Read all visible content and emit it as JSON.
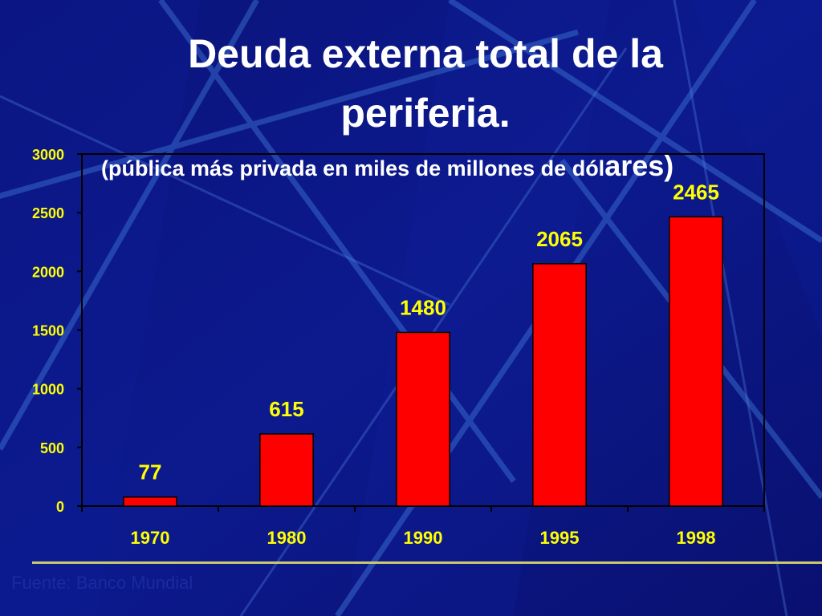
{
  "slide": {
    "title_line1": "Deuda externa total de la",
    "title_line2": "periferia.",
    "subtitle_part1": "(pública más privada en miles de millones de dól",
    "subtitle_part2": "ares)",
    "source_text": "Fuente: Banco Mundial"
  },
  "colors": {
    "background": "#0b1684",
    "bar_fill": "#ff0000",
    "tick_label": "#ffff00",
    "data_label": "#ffff00",
    "axis": "#000000",
    "title": "#ffffff"
  },
  "chart_data": {
    "type": "bar",
    "title": "Deuda externa total de la periferia.",
    "subtitle": "(pública más privada en miles de millones de dólares)",
    "categories": [
      "1970",
      "1980",
      "1990",
      "1995",
      "1998"
    ],
    "values": [
      77,
      615,
      1480,
      2065,
      2465
    ],
    "data_labels": [
      "77",
      "615",
      "1480",
      "2065",
      "2465"
    ],
    "y_ticks": [
      "0",
      "500",
      "1000",
      "1500",
      "2000",
      "2500",
      "3000"
    ],
    "ylim": [
      0,
      3000
    ],
    "xlabel": "",
    "ylabel": "",
    "grid": false,
    "legend": "none"
  }
}
